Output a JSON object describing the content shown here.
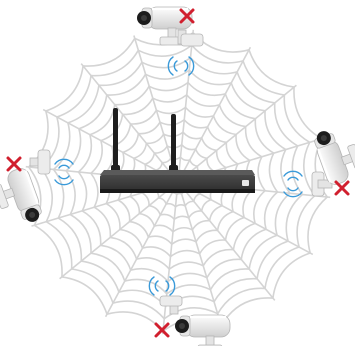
{
  "colors": {
    "background": "#ffffff",
    "web": "#d4d4d4",
    "nvr_body": "#2b2b2b",
    "antenna": "#1e1e1e",
    "camera": "#f1f1f1",
    "camera_shade": "#c9c9c9",
    "camera_lens": "#1c1c1c",
    "signal": "#3a9ad9",
    "blocked_mark": "#d11f2e"
  },
  "icons": {
    "nvr": "nvr-recorder-icon",
    "camera": "cctv-bullet-camera-icon",
    "signal": "wifi-signal-waves-icon",
    "blocked": "red-x-icon"
  },
  "cameras": [
    {
      "position": "top",
      "status": "blocked"
    },
    {
      "position": "left",
      "status": "blocked"
    },
    {
      "position": "right",
      "status": "blocked"
    },
    {
      "position": "bottom",
      "status": "blocked"
    }
  ]
}
